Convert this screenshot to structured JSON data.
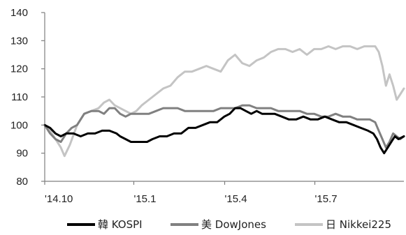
{
  "chart_data": {
    "type": "line",
    "y_ticks": [
      80,
      90,
      100,
      110,
      120,
      130,
      140
    ],
    "x_ticks": [
      {
        "label": "'14.10",
        "t": 0.0
      },
      {
        "label": "'15.1",
        "t": 0.248
      },
      {
        "label": "'15.4",
        "t": 0.501
      },
      {
        "label": "'15.7",
        "t": 0.752
      }
    ],
    "ylim": [
      80,
      140
    ],
    "x_range": [
      0,
      1
    ],
    "grid": false,
    "legend": "bottom",
    "series": [
      {
        "name": "韓 KOSPI",
        "color": "#000000",
        "points": [
          [
            0.0,
            100
          ],
          [
            0.015,
            99
          ],
          [
            0.03,
            97
          ],
          [
            0.045,
            96
          ],
          [
            0.06,
            97
          ],
          [
            0.08,
            97
          ],
          [
            0.1,
            96
          ],
          [
            0.12,
            97
          ],
          [
            0.14,
            97
          ],
          [
            0.16,
            98
          ],
          [
            0.18,
            98
          ],
          [
            0.2,
            97
          ],
          [
            0.21,
            96
          ],
          [
            0.225,
            95
          ],
          [
            0.24,
            94
          ],
          [
            0.255,
            94
          ],
          [
            0.27,
            94
          ],
          [
            0.285,
            94
          ],
          [
            0.3,
            95
          ],
          [
            0.32,
            96
          ],
          [
            0.34,
            96
          ],
          [
            0.36,
            97
          ],
          [
            0.38,
            97
          ],
          [
            0.4,
            99
          ],
          [
            0.42,
            99
          ],
          [
            0.44,
            100
          ],
          [
            0.46,
            101
          ],
          [
            0.48,
            101
          ],
          [
            0.5,
            103
          ],
          [
            0.515,
            104
          ],
          [
            0.53,
            106
          ],
          [
            0.545,
            106
          ],
          [
            0.56,
            105
          ],
          [
            0.575,
            104
          ],
          [
            0.59,
            105
          ],
          [
            0.605,
            104
          ],
          [
            0.62,
            104
          ],
          [
            0.64,
            104
          ],
          [
            0.66,
            103
          ],
          [
            0.68,
            102
          ],
          [
            0.7,
            102
          ],
          [
            0.72,
            103
          ],
          [
            0.74,
            102
          ],
          [
            0.76,
            102
          ],
          [
            0.78,
            103
          ],
          [
            0.8,
            102
          ],
          [
            0.82,
            101
          ],
          [
            0.84,
            101
          ],
          [
            0.86,
            100
          ],
          [
            0.88,
            99
          ],
          [
            0.9,
            98
          ],
          [
            0.915,
            97
          ],
          [
            0.925,
            95
          ],
          [
            0.935,
            92
          ],
          [
            0.945,
            90
          ],
          [
            0.955,
            92
          ],
          [
            0.965,
            94
          ],
          [
            0.975,
            96
          ],
          [
            0.985,
            95
          ],
          [
            1.0,
            96
          ]
        ]
      },
      {
        "name": "美 DowJones",
        "color": "#808080",
        "points": [
          [
            0.0,
            100
          ],
          [
            0.015,
            97
          ],
          [
            0.03,
            95
          ],
          [
            0.045,
            94
          ],
          [
            0.06,
            97
          ],
          [
            0.075,
            99
          ],
          [
            0.09,
            100
          ],
          [
            0.11,
            104
          ],
          [
            0.13,
            105
          ],
          [
            0.15,
            105
          ],
          [
            0.165,
            104
          ],
          [
            0.18,
            106
          ],
          [
            0.195,
            106
          ],
          [
            0.21,
            104
          ],
          [
            0.225,
            103
          ],
          [
            0.24,
            104
          ],
          [
            0.255,
            104
          ],
          [
            0.27,
            104
          ],
          [
            0.29,
            104
          ],
          [
            0.31,
            105
          ],
          [
            0.33,
            106
          ],
          [
            0.35,
            106
          ],
          [
            0.37,
            106
          ],
          [
            0.39,
            105
          ],
          [
            0.41,
            105
          ],
          [
            0.43,
            105
          ],
          [
            0.45,
            105
          ],
          [
            0.47,
            105
          ],
          [
            0.49,
            106
          ],
          [
            0.51,
            106
          ],
          [
            0.53,
            106
          ],
          [
            0.55,
            107
          ],
          [
            0.57,
            107
          ],
          [
            0.59,
            106
          ],
          [
            0.61,
            106
          ],
          [
            0.63,
            106
          ],
          [
            0.65,
            105
          ],
          [
            0.67,
            105
          ],
          [
            0.69,
            105
          ],
          [
            0.71,
            105
          ],
          [
            0.73,
            104
          ],
          [
            0.75,
            104
          ],
          [
            0.77,
            103
          ],
          [
            0.79,
            103
          ],
          [
            0.81,
            104
          ],
          [
            0.83,
            103
          ],
          [
            0.85,
            103
          ],
          [
            0.87,
            102
          ],
          [
            0.89,
            102
          ],
          [
            0.905,
            102
          ],
          [
            0.92,
            101
          ],
          [
            0.93,
            98
          ],
          [
            0.94,
            95
          ],
          [
            0.95,
            92
          ],
          [
            0.96,
            94
          ],
          [
            0.97,
            97
          ],
          [
            0.98,
            96
          ],
          [
            0.99,
            95
          ],
          [
            1.0,
            96
          ]
        ]
      },
      {
        "name": "日 Nikkei225",
        "color": "#c4c4c4",
        "points": [
          [
            0.0,
            100
          ],
          [
            0.015,
            98
          ],
          [
            0.03,
            95
          ],
          [
            0.045,
            92
          ],
          [
            0.055,
            89
          ],
          [
            0.07,
            93
          ],
          [
            0.09,
            100
          ],
          [
            0.11,
            104
          ],
          [
            0.13,
            105
          ],
          [
            0.15,
            106
          ],
          [
            0.165,
            108
          ],
          [
            0.18,
            109
          ],
          [
            0.195,
            107
          ],
          [
            0.21,
            106
          ],
          [
            0.225,
            105
          ],
          [
            0.24,
            104
          ],
          [
            0.255,
            105
          ],
          [
            0.27,
            107
          ],
          [
            0.29,
            109
          ],
          [
            0.31,
            111
          ],
          [
            0.33,
            113
          ],
          [
            0.35,
            114
          ],
          [
            0.37,
            117
          ],
          [
            0.39,
            119
          ],
          [
            0.41,
            119
          ],
          [
            0.43,
            120
          ],
          [
            0.45,
            121
          ],
          [
            0.47,
            120
          ],
          [
            0.49,
            119
          ],
          [
            0.51,
            123
          ],
          [
            0.53,
            125
          ],
          [
            0.55,
            122
          ],
          [
            0.57,
            121
          ],
          [
            0.59,
            123
          ],
          [
            0.61,
            124
          ],
          [
            0.63,
            126
          ],
          [
            0.65,
            127
          ],
          [
            0.67,
            127
          ],
          [
            0.69,
            126
          ],
          [
            0.71,
            127
          ],
          [
            0.73,
            125
          ],
          [
            0.75,
            127
          ],
          [
            0.77,
            127
          ],
          [
            0.79,
            128
          ],
          [
            0.81,
            127
          ],
          [
            0.83,
            128
          ],
          [
            0.85,
            128
          ],
          [
            0.87,
            127
          ],
          [
            0.89,
            128
          ],
          [
            0.905,
            128
          ],
          [
            0.92,
            128
          ],
          [
            0.93,
            126
          ],
          [
            0.94,
            121
          ],
          [
            0.95,
            114
          ],
          [
            0.96,
            118
          ],
          [
            0.97,
            114
          ],
          [
            0.98,
            109
          ],
          [
            0.99,
            111
          ],
          [
            1.0,
            113
          ]
        ]
      }
    ]
  }
}
